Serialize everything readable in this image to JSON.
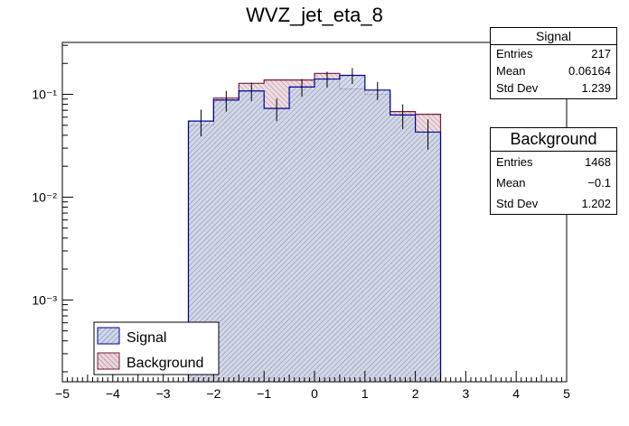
{
  "chart_data": {
    "type": "histogram",
    "title": "WVZ_jet_eta_8",
    "xlabel": "",
    "ylabel": "",
    "xlim": [
      -5,
      5
    ],
    "y_scale": "log",
    "ylim": [
      0.00016,
      0.32
    ],
    "bin_width": 0.5,
    "x_ticks": [
      "−5",
      "−4",
      "−3",
      "−2",
      "−1",
      "0",
      "1",
      "2",
      "3",
      "4",
      "5"
    ],
    "y_ticks": [
      {
        "value": 0.001,
        "label": "10⁻³"
      },
      {
        "value": 0.01,
        "label": "10⁻²"
      },
      {
        "value": 0.1,
        "label": "10⁻¹"
      }
    ],
    "bin_edges": [
      -2.5,
      -2.0,
      -1.5,
      -1.0,
      -0.5,
      0.0,
      0.5,
      1.0,
      1.5,
      2.0,
      2.5
    ],
    "series": [
      {
        "name": "Signal",
        "color": "#000099",
        "fill": "#d0d8e8",
        "values": [
          0.055,
          0.088,
          0.108,
          0.073,
          0.118,
          0.141,
          0.153,
          0.11,
          0.063,
          0.043
        ],
        "errors": [
          0.016,
          0.02,
          0.022,
          0.018,
          0.023,
          0.025,
          0.027,
          0.022,
          0.017,
          0.014
        ]
      },
      {
        "name": "Background",
        "color": "#7a1a3a",
        "fill": "#ead6dc",
        "values": [
          0.05,
          0.092,
          0.128,
          0.138,
          0.138,
          0.16,
          0.113,
          0.1,
          0.068,
          0.064
        ]
      }
    ],
    "legend": {
      "position": "bottom-left",
      "entries": [
        "Signal",
        "Background"
      ]
    }
  },
  "stats": {
    "signal": {
      "title": "Signal",
      "rows": [
        {
          "label": "Entries",
          "value": "217"
        },
        {
          "label": "Mean",
          "value": "0.06164"
        },
        {
          "label": "Std Dev",
          "value": "1.239"
        }
      ]
    },
    "background": {
      "title": "Background",
      "rows": [
        {
          "label": "Entries",
          "value": "1468"
        },
        {
          "label": "Mean",
          "value": "−0.1"
        },
        {
          "label": "Std Dev",
          "value": "1.202"
        }
      ]
    }
  }
}
